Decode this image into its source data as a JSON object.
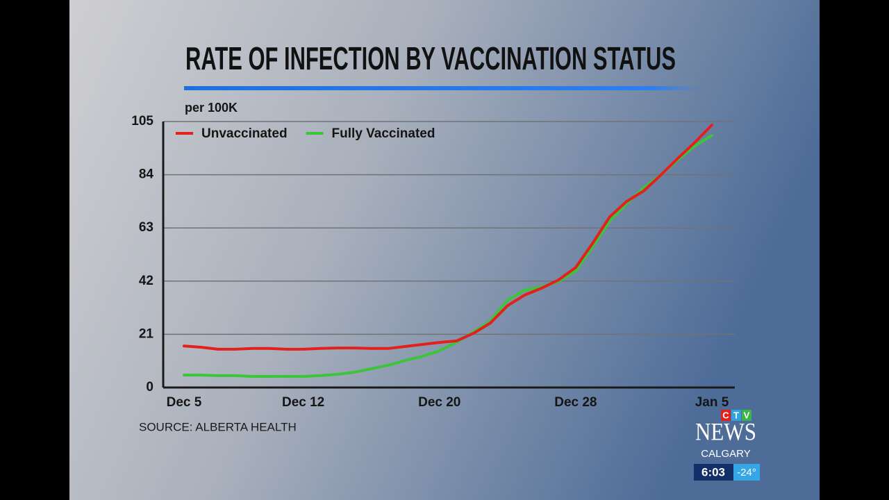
{
  "chart_data": {
    "type": "line",
    "title": "RATE OF INFECTION BY VACCINATION STATUS",
    "subtitle": "per 100K",
    "source": "SOURCE: ALBERTA HEALTH",
    "categories": [
      "Dec 5",
      null,
      null,
      null,
      null,
      null,
      null,
      "Dec 12",
      null,
      null,
      null,
      null,
      null,
      null,
      null,
      "Dec 20",
      null,
      null,
      null,
      null,
      null,
      null,
      null,
      "Dec 28",
      null,
      null,
      null,
      null,
      null,
      null,
      null,
      "Jan 5"
    ],
    "series": [
      {
        "name": "Unvaccinated",
        "color": "#e3201b",
        "values": [
          16.4,
          15.9,
          15.1,
          15.1,
          15.4,
          15.4,
          15.1,
          15.1,
          15.4,
          15.6,
          15.6,
          15.4,
          15.4,
          16.2,
          17,
          17.8,
          18.4,
          21.4,
          25.5,
          32.3,
          36.5,
          39.2,
          42.5,
          47.4,
          57,
          67.4,
          73.5,
          77.6,
          83.9,
          90.5,
          96.8,
          103.6
        ]
      },
      {
        "name": "Fully Vaccinated",
        "color": "#3cc43a",
        "values": [
          4.9,
          4.9,
          4.7,
          4.7,
          4.4,
          4.4,
          4.4,
          4.4,
          4.7,
          5.2,
          6,
          7.4,
          8.8,
          10.7,
          12.3,
          14.5,
          17.8,
          21.9,
          26.3,
          34.5,
          38.4,
          39.7,
          41.9,
          46,
          55.6,
          65.8,
          72.6,
          78.9,
          83.9,
          89.9,
          95.4,
          99.5
        ]
      }
    ],
    "ylim": [
      0,
      105
    ],
    "yticks": [
      0,
      21,
      42,
      63,
      84,
      105
    ],
    "grid": true,
    "legend": "top-left"
  },
  "broadcast": {
    "network": [
      "C",
      "T",
      "V"
    ],
    "brand": "NEWS",
    "city": "CALGARY",
    "time": "6:03",
    "temperature": "-24°"
  }
}
